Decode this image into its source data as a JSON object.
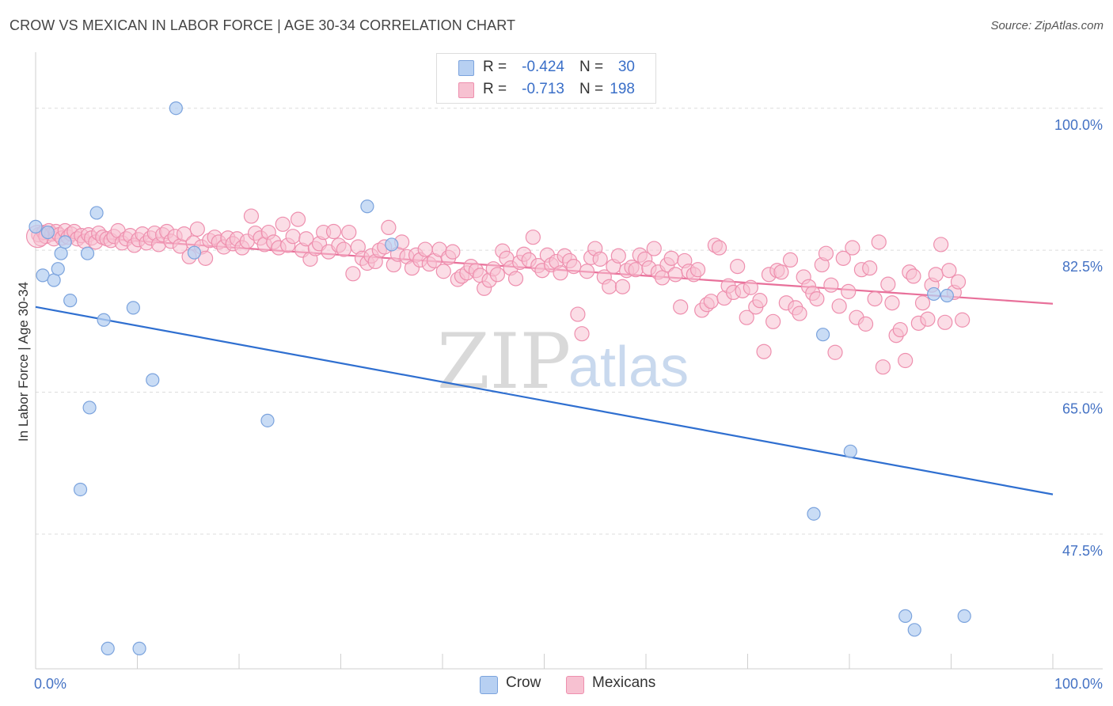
{
  "title": "CROW VS MEXICAN IN LABOR FORCE | AGE 30-34 CORRELATION CHART",
  "source": "Source: ZipAtlas.com",
  "watermark": {
    "zip": "ZIP",
    "atlas": "atlas"
  },
  "stats": {
    "crow": {
      "r_label": "R =",
      "r_value": "-0.424",
      "n_label": "N =",
      "n_value": "30"
    },
    "mexicans": {
      "r_label": "R =",
      "r_value": "-0.713",
      "n_label": "N =",
      "n_value": "198"
    }
  },
  "legend": {
    "crow": "Crow",
    "mexicans": "Mexicans"
  },
  "colors": {
    "crow_fill": "#b7d0f2",
    "crow_stroke": "#7ba3dd",
    "crow_line": "#2f6fd0",
    "mex_fill": "#f7c1d1",
    "mex_stroke": "#ee8fae",
    "mex_line": "#e8709a",
    "tick_text": "#4472c4",
    "grid": "#dddddd"
  },
  "chart_data": {
    "type": "scatter",
    "title": "CROW VS MEXICAN IN LABOR FORCE | AGE 30-34 CORRELATION CHART",
    "xlabel": "",
    "ylabel": "In Labor Force | Age 30-34",
    "xlim": [
      0,
      100
    ],
    "ylim": [
      31,
      107
    ],
    "x_tick_labels": [
      "0.0%",
      "100.0%"
    ],
    "y_ticks": [
      {
        "value": 100,
        "label": "100.0%"
      },
      {
        "value": 82.5,
        "label": "82.5%"
      },
      {
        "value": 65,
        "label": "65.0%"
      },
      {
        "value": 47.5,
        "label": "47.5%"
      }
    ],
    "grid": "horizontal dashed",
    "series": [
      {
        "name": "Crow",
        "r": -0.424,
        "n": 30,
        "trend": {
          "x": [
            0,
            100
          ],
          "y": [
            75.6,
            52.5
          ]
        },
        "points": [
          [
            0,
            85.5
          ],
          [
            0.7,
            79.5
          ],
          [
            1.2,
            84.8
          ],
          [
            1.8,
            78.9
          ],
          [
            2.2,
            80.3
          ],
          [
            2.5,
            82.2
          ],
          [
            2.9,
            83.6
          ],
          [
            3.4,
            76.4
          ],
          [
            5.1,
            82.2
          ],
          [
            5.3,
            63.2
          ],
          [
            4.4,
            53.1
          ],
          [
            6.0,
            87.2
          ],
          [
            6.7,
            74.0
          ],
          [
            7.1,
            33.5
          ],
          [
            9.6,
            75.5
          ],
          [
            10.2,
            33.5
          ],
          [
            11.5,
            66.6
          ],
          [
            13.8,
            100.1
          ],
          [
            15.6,
            82.3
          ],
          [
            22.8,
            61.6
          ],
          [
            32.6,
            88.0
          ],
          [
            35.0,
            83.3
          ],
          [
            76.5,
            50.1
          ],
          [
            77.4,
            72.2
          ],
          [
            80.1,
            57.8
          ],
          [
            85.5,
            37.5
          ],
          [
            86.4,
            35.8
          ],
          [
            88.3,
            77.2
          ],
          [
            89.6,
            77.0
          ],
          [
            91.3,
            37.5
          ]
        ]
      },
      {
        "name": "Mexicans",
        "r": -0.713,
        "n": 198,
        "trend": {
          "x": [
            0,
            100
          ],
          "y": [
            84.6,
            76.0
          ]
        },
        "points": [
          [
            0.3,
            84.5
          ],
          [
            0.5,
            84.0
          ],
          [
            0.8,
            84.8
          ],
          [
            1.0,
            84.3
          ],
          [
            1.3,
            85.0
          ],
          [
            1.6,
            84.6
          ],
          [
            1.8,
            84.0
          ],
          [
            2.0,
            84.9
          ],
          [
            2.3,
            84.5
          ],
          [
            2.6,
            84.1
          ],
          [
            2.9,
            85.0
          ],
          [
            3.2,
            84.2
          ],
          [
            3.5,
            84.6
          ],
          [
            3.8,
            84.9
          ],
          [
            4.1,
            84.0
          ],
          [
            4.5,
            84.4
          ],
          [
            4.8,
            83.7
          ],
          [
            5.2,
            84.5
          ],
          [
            5.5,
            84.1
          ],
          [
            5.9,
            83.6
          ],
          [
            6.2,
            84.7
          ],
          [
            6.6,
            84.2
          ],
          [
            7.0,
            84.0
          ],
          [
            7.4,
            83.8
          ],
          [
            7.7,
            84.3
          ],
          [
            8.1,
            85.0
          ],
          [
            8.5,
            83.5
          ],
          [
            8.9,
            84.0
          ],
          [
            9.3,
            84.4
          ],
          [
            9.7,
            83.2
          ],
          [
            10.1,
            83.9
          ],
          [
            10.5,
            84.6
          ],
          [
            10.9,
            83.5
          ],
          [
            11.3,
            84.1
          ],
          [
            11.7,
            84.7
          ],
          [
            12.1,
            83.3
          ],
          [
            12.5,
            84.5
          ],
          [
            12.9,
            84.9
          ],
          [
            13.3,
            83.7
          ],
          [
            13.7,
            84.3
          ],
          [
            14.2,
            83.1
          ],
          [
            14.6,
            84.6
          ],
          [
            15.1,
            81.8
          ],
          [
            15.5,
            83.5
          ],
          [
            15.9,
            85.2
          ],
          [
            16.3,
            83.0
          ],
          [
            16.7,
            81.6
          ],
          [
            17.1,
            83.8
          ],
          [
            17.6,
            84.2
          ],
          [
            18.0,
            83.6
          ],
          [
            18.5,
            83.0
          ],
          [
            18.9,
            84.1
          ],
          [
            19.4,
            83.4
          ],
          [
            19.8,
            84.0
          ],
          [
            20.3,
            82.9
          ],
          [
            20.8,
            83.7
          ],
          [
            21.2,
            86.8
          ],
          [
            21.6,
            84.7
          ],
          [
            22.1,
            84.1
          ],
          [
            22.5,
            83.3
          ],
          [
            22.9,
            84.8
          ],
          [
            23.4,
            83.6
          ],
          [
            23.9,
            82.9
          ],
          [
            24.3,
            85.8
          ],
          [
            24.8,
            83.2
          ],
          [
            25.3,
            84.3
          ],
          [
            25.8,
            86.4
          ],
          [
            26.2,
            82.6
          ],
          [
            26.6,
            84.0
          ],
          [
            27.0,
            81.5
          ],
          [
            27.5,
            82.8
          ],
          [
            27.9,
            83.4
          ],
          [
            28.3,
            84.8
          ],
          [
            28.8,
            82.4
          ],
          [
            29.3,
            84.9
          ],
          [
            29.8,
            83.2
          ],
          [
            30.3,
            82.7
          ],
          [
            30.8,
            84.8
          ],
          [
            31.2,
            79.7
          ],
          [
            31.7,
            83.0
          ],
          [
            32.1,
            81.6
          ],
          [
            32.6,
            81.0
          ],
          [
            33.0,
            81.9
          ],
          [
            33.4,
            81.2
          ],
          [
            33.8,
            82.6
          ],
          [
            34.3,
            83.0
          ],
          [
            34.7,
            85.4
          ],
          [
            35.2,
            80.8
          ],
          [
            35.6,
            82.1
          ],
          [
            36.0,
            83.6
          ],
          [
            36.5,
            81.8
          ],
          [
            37.0,
            80.4
          ],
          [
            37.4,
            82.0
          ],
          [
            37.8,
            81.4
          ],
          [
            38.3,
            82.7
          ],
          [
            38.7,
            80.9
          ],
          [
            39.2,
            81.3
          ],
          [
            39.7,
            82.7
          ],
          [
            40.1,
            80.0
          ],
          [
            40.6,
            81.7
          ],
          [
            41.0,
            82.4
          ],
          [
            41.5,
            79.0
          ],
          [
            41.9,
            79.4
          ],
          [
            42.4,
            79.8
          ],
          [
            42.8,
            80.6
          ],
          [
            43.3,
            80.1
          ],
          [
            43.7,
            79.5
          ],
          [
            44.1,
            77.9
          ],
          [
            44.6,
            78.9
          ],
          [
            45.0,
            80.3
          ],
          [
            45.4,
            79.6
          ],
          [
            45.9,
            82.5
          ],
          [
            46.3,
            81.6
          ],
          [
            46.7,
            80.4
          ],
          [
            47.2,
            79.1
          ],
          [
            47.6,
            81.1
          ],
          [
            48.0,
            82.1
          ],
          [
            48.5,
            81.4
          ],
          [
            48.9,
            84.2
          ],
          [
            49.4,
            80.7
          ],
          [
            49.8,
            80.1
          ],
          [
            50.3,
            82.0
          ],
          [
            50.7,
            80.8
          ],
          [
            51.2,
            81.2
          ],
          [
            51.6,
            79.8
          ],
          [
            52.0,
            81.9
          ],
          [
            52.5,
            81.3
          ],
          [
            52.9,
            80.6
          ],
          [
            53.3,
            74.7
          ],
          [
            53.7,
            72.3
          ],
          [
            54.2,
            80.0
          ],
          [
            54.6,
            81.7
          ],
          [
            55.0,
            82.8
          ],
          [
            55.5,
            81.5
          ],
          [
            55.9,
            79.3
          ],
          [
            56.4,
            78.1
          ],
          [
            56.8,
            80.6
          ],
          [
            57.3,
            81.9
          ],
          [
            57.7,
            78.1
          ],
          [
            58.1,
            80.1
          ],
          [
            58.6,
            80.5
          ],
          [
            59.0,
            80.2
          ],
          [
            59.4,
            82.0
          ],
          [
            59.9,
            81.5
          ],
          [
            60.3,
            80.4
          ],
          [
            60.8,
            82.8
          ],
          [
            61.2,
            79.9
          ],
          [
            61.6,
            79.2
          ],
          [
            62.1,
            80.8
          ],
          [
            62.5,
            81.6
          ],
          [
            62.9,
            79.6
          ],
          [
            63.4,
            75.6
          ],
          [
            63.8,
            81.3
          ],
          [
            64.2,
            80.0
          ],
          [
            64.7,
            79.6
          ],
          [
            65.1,
            80.2
          ],
          [
            65.5,
            75.2
          ],
          [
            66.0,
            75.9
          ],
          [
            66.4,
            76.3
          ],
          [
            66.8,
            83.2
          ],
          [
            67.2,
            82.9
          ],
          [
            67.7,
            76.7
          ],
          [
            68.1,
            78.2
          ],
          [
            68.6,
            77.4
          ],
          [
            69.0,
            80.6
          ],
          [
            69.5,
            77.6
          ],
          [
            69.9,
            74.3
          ],
          [
            70.3,
            78.0
          ],
          [
            70.8,
            75.6
          ],
          [
            71.2,
            76.4
          ],
          [
            71.6,
            70.1
          ],
          [
            72.1,
            79.6
          ],
          [
            72.5,
            73.8
          ],
          [
            72.9,
            80.1
          ],
          [
            73.3,
            79.9
          ],
          [
            73.8,
            76.1
          ],
          [
            74.2,
            81.4
          ],
          [
            74.7,
            75.5
          ],
          [
            75.1,
            74.8
          ],
          [
            75.5,
            79.3
          ],
          [
            76.0,
            78.1
          ],
          [
            76.4,
            77.3
          ],
          [
            76.8,
            76.6
          ],
          [
            77.3,
            80.8
          ],
          [
            77.7,
            82.2
          ],
          [
            78.2,
            78.3
          ],
          [
            78.6,
            70.0
          ],
          [
            79.0,
            75.7
          ],
          [
            79.4,
            81.6
          ],
          [
            79.9,
            77.5
          ],
          [
            80.3,
            82.9
          ],
          [
            80.7,
            74.3
          ],
          [
            81.2,
            80.2
          ],
          [
            81.6,
            73.5
          ],
          [
            82.0,
            80.4
          ],
          [
            82.5,
            76.6
          ],
          [
            82.9,
            83.6
          ],
          [
            83.3,
            68.2
          ],
          [
            83.8,
            78.4
          ],
          [
            84.2,
            76.1
          ],
          [
            84.6,
            72.1
          ],
          [
            85.0,
            72.8
          ],
          [
            85.5,
            69.0
          ],
          [
            85.9,
            79.9
          ],
          [
            86.3,
            79.4
          ],
          [
            86.8,
            73.6
          ],
          [
            87.2,
            76.1
          ],
          [
            87.7,
            74.1
          ],
          [
            88.1,
            78.3
          ],
          [
            88.5,
            79.6
          ],
          [
            89.0,
            83.3
          ],
          [
            89.4,
            73.7
          ],
          [
            89.8,
            80.1
          ],
          [
            90.3,
            77.4
          ],
          [
            90.7,
            78.7
          ],
          [
            91.1,
            74.0
          ]
        ]
      }
    ]
  }
}
